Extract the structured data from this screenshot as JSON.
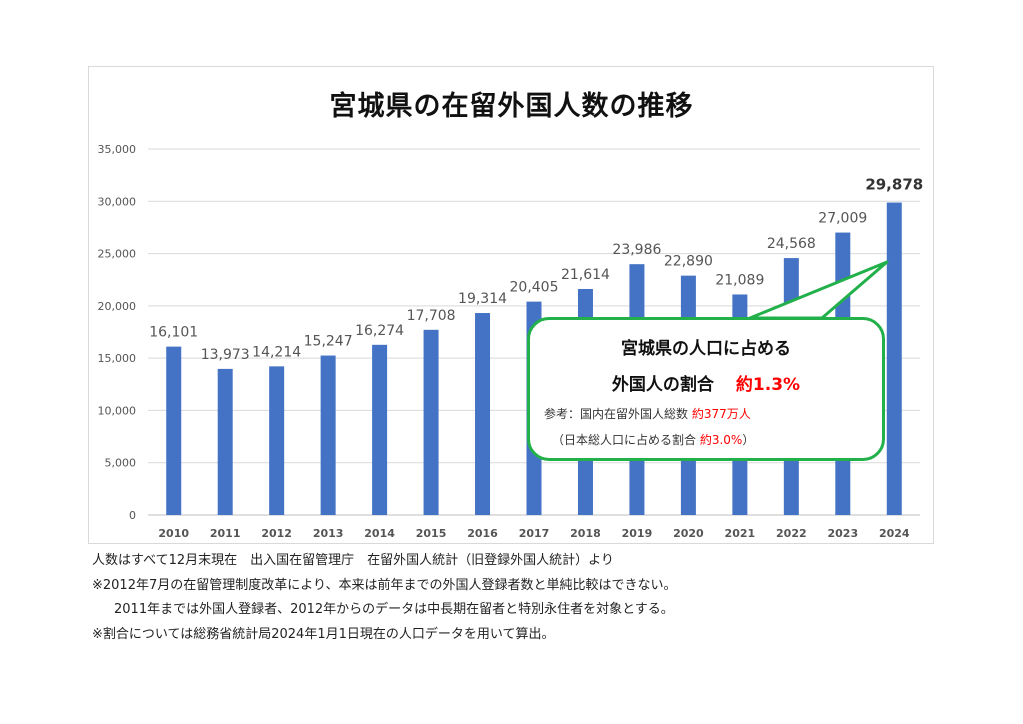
{
  "title": "宮城県の在留外国人数の推移",
  "chart_data": {
    "type": "bar",
    "title": "宮城県の在留外国人数の推移",
    "categories": [
      "2010",
      "2011",
      "2012",
      "2013",
      "2014",
      "2015",
      "2016",
      "2017",
      "2018",
      "2019",
      "2020",
      "2021",
      "2022",
      "2023",
      "2024"
    ],
    "values": [
      16101,
      13973,
      14214,
      15247,
      16274,
      17708,
      19314,
      20405,
      21614,
      23986,
      22890,
      21089,
      24568,
      27009,
      29878
    ],
    "data_labels": [
      "16,101",
      "13,973",
      "14,214",
      "15,247",
      "16,274",
      "17,708",
      "19,314",
      "20,405",
      "21,614",
      "23,986",
      "22,890",
      "21,089",
      "24,568",
      "27,009",
      "29,878"
    ],
    "y_ticks": [
      "0",
      "5,000",
      "10,000",
      "15,000",
      "20,000",
      "25,000",
      "30,000",
      "35,000"
    ],
    "ylim": [
      0,
      35000
    ],
    "xlabel": "",
    "ylabel": "",
    "grid": true,
    "bar_color": "#4472c4"
  },
  "callout": {
    "line1": "宮城県の人口に占める",
    "line2_label": "外国人の割合",
    "line2_value": "約1.3%",
    "ref1_label": "参考：国内在留外国人総数 ",
    "ref1_value": "約377万人",
    "ref2_label": "（日本総人口に占める割合 ",
    "ref2_value": "約3.0%",
    "ref2_close": "）",
    "border_color": "#22b04b",
    "highlight_color": "#ff0000"
  },
  "notes": [
    "人数はすべて12月末現在　出入国在留管理庁　在留外国人統計（旧登録外国人統計）より",
    "※2012年7月の在留管理制度改革により、本来は前年までの外国人登録者数と単純比較はできない。",
    "2011年までは外国人登録者、2012年からのデータは中長期在留者と特別永住者を対象とする。",
    "※割合については総務省統計局2024年1月1日現在の人口データを用いて算出。"
  ]
}
